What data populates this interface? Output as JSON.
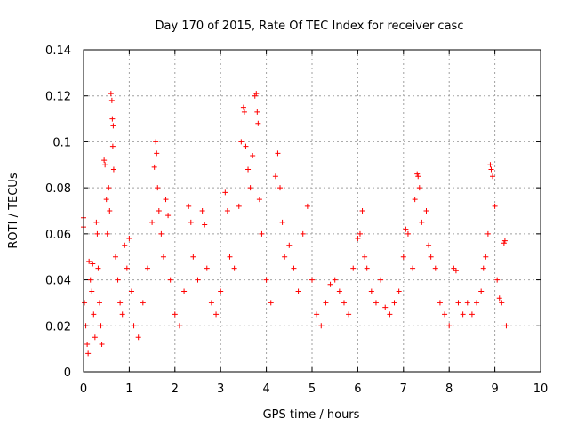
{
  "chart_data": {
    "type": "scatter",
    "title": "Day 170 of 2015, Rate Of TEC Index for receiver casc",
    "xlabel": "GPS time / hours",
    "ylabel": "ROTI / TECUs",
    "xlim": [
      0,
      10
    ],
    "ylim": [
      0,
      0.14
    ],
    "xticks": [
      0,
      1,
      2,
      3,
      4,
      5,
      6,
      7,
      8,
      9,
      10
    ],
    "yticks": [
      0,
      0.02,
      0.04,
      0.06,
      0.08,
      0.1,
      0.12,
      0.14
    ],
    "ytick_labels": [
      "0",
      "0.02",
      "0.04",
      "0.06",
      "0.08",
      "0.1",
      "0.12",
      "0.14"
    ],
    "grid": true,
    "marker": "plus",
    "color": "#ff0000",
    "x_data_range": [
      0,
      9.25
    ],
    "series": [
      {
        "name": "ROTI",
        "points": [
          [
            0.0,
            0.067
          ],
          [
            0.0,
            0.063
          ],
          [
            0.02,
            0.03
          ],
          [
            0.05,
            0.02
          ],
          [
            0.08,
            0.012
          ],
          [
            0.1,
            0.008
          ],
          [
            0.12,
            0.048
          ],
          [
            0.15,
            0.04
          ],
          [
            0.18,
            0.035
          ],
          [
            0.2,
            0.047
          ],
          [
            0.22,
            0.025
          ],
          [
            0.25,
            0.015
          ],
          [
            0.28,
            0.065
          ],
          [
            0.3,
            0.06
          ],
          [
            0.32,
            0.045
          ],
          [
            0.35,
            0.03
          ],
          [
            0.38,
            0.02
          ],
          [
            0.4,
            0.012
          ],
          [
            0.45,
            0.092
          ],
          [
            0.47,
            0.09
          ],
          [
            0.5,
            0.075
          ],
          [
            0.52,
            0.06
          ],
          [
            0.55,
            0.08
          ],
          [
            0.57,
            0.07
          ],
          [
            0.6,
            0.121
          ],
          [
            0.62,
            0.118
          ],
          [
            0.63,
            0.11
          ],
          [
            0.65,
            0.107
          ],
          [
            0.64,
            0.098
          ],
          [
            0.66,
            0.088
          ],
          [
            0.7,
            0.05
          ],
          [
            0.75,
            0.04
          ],
          [
            0.8,
            0.03
          ],
          [
            0.85,
            0.025
          ],
          [
            0.9,
            0.055
          ],
          [
            0.95,
            0.045
          ],
          [
            1.0,
            0.058
          ],
          [
            1.05,
            0.035
          ],
          [
            1.1,
            0.02
          ],
          [
            1.2,
            0.015
          ],
          [
            1.3,
            0.03
          ],
          [
            1.4,
            0.045
          ],
          [
            1.5,
            0.065
          ],
          [
            1.55,
            0.089
          ],
          [
            1.58,
            0.1
          ],
          [
            1.6,
            0.095
          ],
          [
            1.62,
            0.08
          ],
          [
            1.65,
            0.07
          ],
          [
            1.7,
            0.06
          ],
          [
            1.75,
            0.05
          ],
          [
            1.8,
            0.075
          ],
          [
            1.85,
            0.068
          ],
          [
            1.9,
            0.04
          ],
          [
            2.0,
            0.025
          ],
          [
            2.1,
            0.02
          ],
          [
            2.2,
            0.035
          ],
          [
            2.3,
            0.072
          ],
          [
            2.35,
            0.065
          ],
          [
            2.4,
            0.05
          ],
          [
            2.5,
            0.04
          ],
          [
            2.6,
            0.07
          ],
          [
            2.65,
            0.064
          ],
          [
            2.7,
            0.045
          ],
          [
            2.8,
            0.03
          ],
          [
            2.9,
            0.025
          ],
          [
            3.0,
            0.035
          ],
          [
            3.1,
            0.078
          ],
          [
            3.15,
            0.07
          ],
          [
            3.2,
            0.05
          ],
          [
            3.3,
            0.045
          ],
          [
            3.4,
            0.072
          ],
          [
            3.45,
            0.1
          ],
          [
            3.5,
            0.115
          ],
          [
            3.52,
            0.113
          ],
          [
            3.55,
            0.098
          ],
          [
            3.6,
            0.088
          ],
          [
            3.65,
            0.08
          ],
          [
            3.7,
            0.094
          ],
          [
            3.75,
            0.12
          ],
          [
            3.78,
            0.121
          ],
          [
            3.8,
            0.113
          ],
          [
            3.82,
            0.108
          ],
          [
            3.85,
            0.075
          ],
          [
            3.9,
            0.06
          ],
          [
            4.0,
            0.04
          ],
          [
            4.1,
            0.03
          ],
          [
            4.2,
            0.085
          ],
          [
            4.25,
            0.095
          ],
          [
            4.3,
            0.08
          ],
          [
            4.35,
            0.065
          ],
          [
            4.4,
            0.05
          ],
          [
            4.5,
            0.055
          ],
          [
            4.6,
            0.045
          ],
          [
            4.7,
            0.035
          ],
          [
            4.8,
            0.06
          ],
          [
            4.9,
            0.072
          ],
          [
            5.0,
            0.04
          ],
          [
            5.1,
            0.025
          ],
          [
            5.2,
            0.02
          ],
          [
            5.3,
            0.03
          ],
          [
            5.4,
            0.038
          ],
          [
            5.5,
            0.04
          ],
          [
            5.6,
            0.035
          ],
          [
            5.7,
            0.03
          ],
          [
            5.8,
            0.025
          ],
          [
            5.9,
            0.045
          ],
          [
            6.0,
            0.058
          ],
          [
            6.05,
            0.06
          ],
          [
            6.1,
            0.07
          ],
          [
            6.15,
            0.05
          ],
          [
            6.2,
            0.045
          ],
          [
            6.3,
            0.035
          ],
          [
            6.4,
            0.03
          ],
          [
            6.5,
            0.04
          ],
          [
            6.6,
            0.028
          ],
          [
            6.7,
            0.025
          ],
          [
            6.8,
            0.03
          ],
          [
            6.9,
            0.035
          ],
          [
            7.0,
            0.05
          ],
          [
            7.05,
            0.062
          ],
          [
            7.1,
            0.06
          ],
          [
            7.2,
            0.045
          ],
          [
            7.25,
            0.075
          ],
          [
            7.3,
            0.086
          ],
          [
            7.32,
            0.085
          ],
          [
            7.35,
            0.08
          ],
          [
            7.4,
            0.065
          ],
          [
            7.5,
            0.07
          ],
          [
            7.55,
            0.055
          ],
          [
            7.6,
            0.05
          ],
          [
            7.7,
            0.045
          ],
          [
            7.8,
            0.03
          ],
          [
            7.9,
            0.025
          ],
          [
            8.0,
            0.02
          ],
          [
            8.1,
            0.045
          ],
          [
            8.15,
            0.044
          ],
          [
            8.2,
            0.03
          ],
          [
            8.3,
            0.025
          ],
          [
            8.4,
            0.03
          ],
          [
            8.5,
            0.025
          ],
          [
            8.6,
            0.03
          ],
          [
            8.7,
            0.035
          ],
          [
            8.75,
            0.045
          ],
          [
            8.8,
            0.05
          ],
          [
            8.85,
            0.06
          ],
          [
            8.9,
            0.09
          ],
          [
            8.92,
            0.088
          ],
          [
            8.95,
            0.085
          ],
          [
            9.0,
            0.072
          ],
          [
            9.05,
            0.04
          ],
          [
            9.1,
            0.032
          ],
          [
            9.15,
            0.03
          ],
          [
            9.2,
            0.056
          ],
          [
            9.22,
            0.057
          ],
          [
            9.25,
            0.02
          ]
        ]
      }
    ]
  }
}
